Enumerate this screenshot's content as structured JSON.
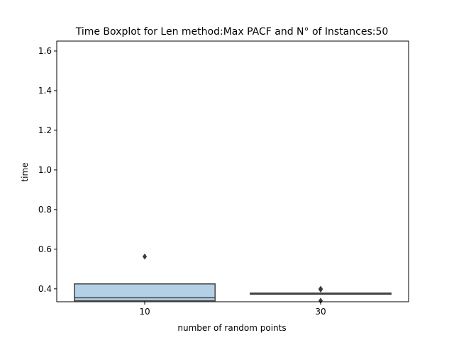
{
  "chart_data": {
    "type": "boxplot",
    "title": "Time Boxplot for Len method:Max PACF and N° of Instances:50",
    "xlabel": "number of random points",
    "ylabel": "time",
    "categories": [
      "10",
      "30"
    ],
    "ylim": [
      0.335,
      1.65
    ],
    "yticks": [
      0.4,
      0.6,
      0.8,
      1.0,
      1.2,
      1.4,
      1.6
    ],
    "ytick_labels": [
      "0.4",
      "0.6",
      "0.8",
      "1.0",
      "1.2",
      "1.4",
      "1.6"
    ],
    "grid": false,
    "boxes": [
      {
        "category": "10",
        "whisker_low": 0.335,
        "q1": 0.34,
        "median": 0.355,
        "q3": 0.425,
        "whisker_high": 0.425,
        "outliers": [
          0.563
        ],
        "color": "#b4d0e6"
      },
      {
        "category": "30",
        "whisker_low": 0.372,
        "q1": 0.373,
        "median": 0.376,
        "q3": 0.379,
        "whisker_high": 0.379,
        "outliers": [
          0.4,
          0.397,
          0.34
        ],
        "color": "#b4d0e6"
      }
    ]
  }
}
